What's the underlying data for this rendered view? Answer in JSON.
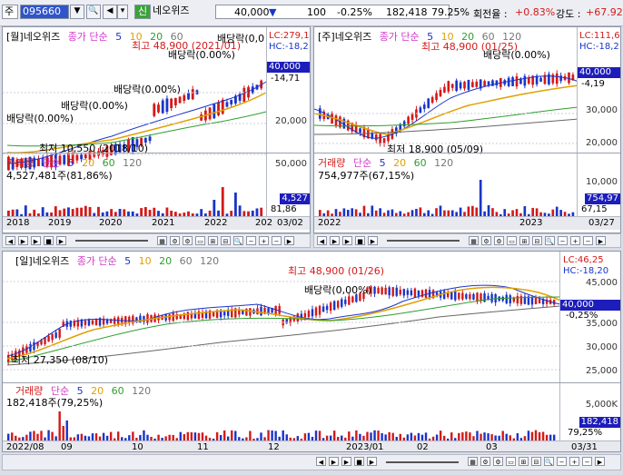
{
  "toolbar": {
    "market": "주",
    "code": "095660",
    "name": "네오위즈",
    "badge": "신",
    "price": "40,000",
    "change_arrow": "▼",
    "change": "100",
    "change_pct": "-0.25%",
    "volume": "182,418",
    "vol_ratio": "79.25%",
    "turnover_label": "회전율 :",
    "turnover": "+0.83%",
    "strength_label": "강도 :",
    "strength": "+67.92%"
  },
  "monthly": {
    "title": "[월]네오위즈",
    "ma_label": "종가 단순",
    "ma": [
      "5",
      "10",
      "20",
      "60",
      "120"
    ],
    "lc": "LC:279,1",
    "hc": "HC:-18,2",
    "high_ann": "최고 48,900 (2021/01)",
    "low_ann": "최저 10,550 (2018/10)",
    "div1": "배당락(0.00%)",
    "div2": "배당락(0.00%)",
    "div3": "배당락(0.00%)",
    "div4": "배당락(0.00%)",
    "div5": "배당락(0.00%)",
    "div6": "배당락(0,0",
    "cur_price": "40,000",
    "cur_pct": "-14,71",
    "y_labels": [
      "40,000",
      "30,000",
      "20,000"
    ],
    "vol_title": "거래량",
    "vol_ma": [
      "단순",
      "5",
      "20",
      "60",
      "120"
    ],
    "vol_value": "4,527,481주(81,86%)",
    "vol_cur": "4,527",
    "vol_pct": "81,86",
    "vol_y": "50,000",
    "x_labels": [
      "2018",
      "2019",
      "2020",
      "2021",
      "2022",
      "202"
    ],
    "date": "03/02"
  },
  "weekly": {
    "title": "[주]네오위즈",
    "ma_label": "종가 단순",
    "ma": [
      "5",
      "10",
      "20",
      "60",
      "120"
    ],
    "lc": "LC:111,6",
    "hc": "HC:-18,2",
    "high_ann": "최고 48,900 (01/25)",
    "low_ann": "최저 18,900 (05/09)",
    "div1": "배당락(0.00%)",
    "cur_price": "40,000",
    "cur_pct": "-4,19",
    "y_labels": [
      "30,000",
      "20,000"
    ],
    "vol_title": "거래량",
    "vol_ma": [
      "단순",
      "5",
      "20",
      "60",
      "120"
    ],
    "vol_value": "754,977주(67,15%)",
    "vol_cur": "754,97",
    "vol_pct": "67,15",
    "vol_y": "10,000",
    "x_labels": [
      "2022",
      "2023"
    ],
    "date": "03/27"
  },
  "daily": {
    "title": "[일]네오위즈",
    "ma_label": "종가 단순",
    "ma": [
      "5",
      "10",
      "20",
      "60",
      "120"
    ],
    "lc": "LC:46,25",
    "hc": "HC:-18,20",
    "high_ann": "최고 48,900 (01/26)",
    "low_ann": "최저 27,350 (08/10)",
    "div1": "배당락(0,00%)",
    "cur_price": "40,000",
    "cur_pct": "-0,25%",
    "y_labels": [
      "45,000",
      "35,000",
      "30,000",
      "25,000"
    ],
    "vol_title": "거래량",
    "vol_ma": [
      "단순",
      "5",
      "20",
      "60",
      "120"
    ],
    "vol_value": "182,418주(79,25%)",
    "vol_cur": "182,418",
    "vol_pct": "79,25%",
    "vol_y": "5,000K",
    "x_labels": [
      "2022/08",
      "09",
      "10",
      "11",
      "12",
      "2023/01",
      "02",
      "03"
    ],
    "date": "03/31"
  },
  "nav": {
    "plus": "+",
    "minus": "−"
  },
  "colors": {
    "up": "#d41a1a",
    "down": "#1b35c8",
    "ma5": "#1b35c8",
    "ma10": "#e0a000",
    "ma20": "#2d9e2d",
    "ma60": "#555555",
    "cur_bg": "#1d1dbb"
  }
}
